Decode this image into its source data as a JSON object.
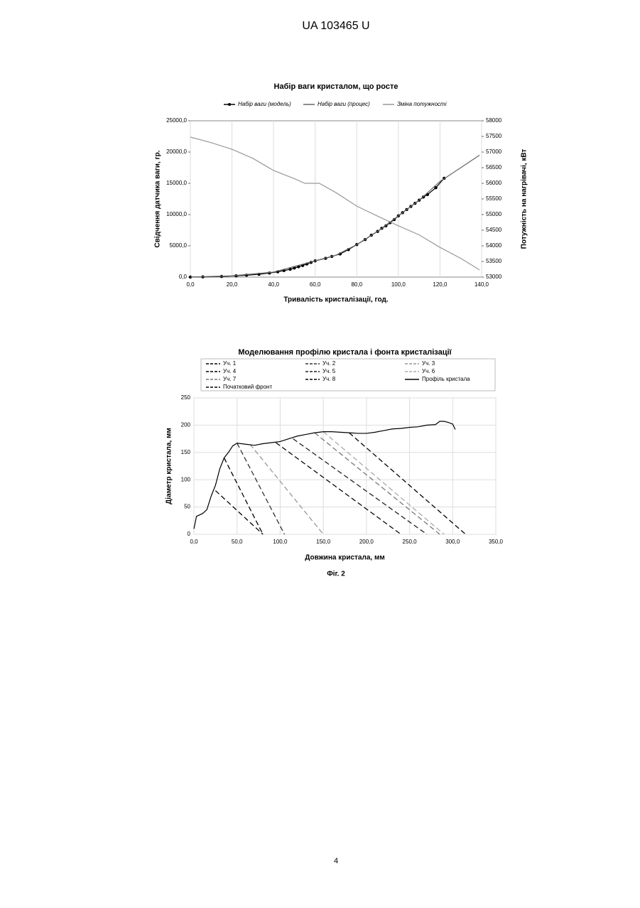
{
  "header": "UA   103465   U",
  "caption": "Фіг. 2",
  "page_number": "4",
  "chart_data": [
    {
      "type": "line",
      "title": "Набір ваги кристалом, що росте",
      "xlabel": "Тривалість кристалізації, год.",
      "ylabel": "Свідчення датчика ваги, гр.",
      "y2label": "Потужність на нагрівачі, кВт",
      "xlim": [
        0,
        140
      ],
      "xticks": [
        {
          "value": 0,
          "label": "0,0"
        },
        {
          "value": 20,
          "label": "20,0"
        },
        {
          "value": 40,
          "label": "40,0"
        },
        {
          "value": 60,
          "label": "60,0"
        },
        {
          "value": 80,
          "label": "80,0"
        },
        {
          "value": 100,
          "label": "100,0"
        },
        {
          "value": 120,
          "label": "120,0"
        },
        {
          "value": 140,
          "label": "140,0"
        }
      ],
      "ylim": [
        0,
        25000
      ],
      "yticks": [
        {
          "value": 0,
          "label": "0,0"
        },
        {
          "value": 5000,
          "label": "5000,0"
        },
        {
          "value": 10000,
          "label": "10000,0"
        },
        {
          "value": 15000,
          "label": "15000,0"
        },
        {
          "value": 20000,
          "label": "20000,0"
        },
        {
          "value": 25000,
          "label": "25000,0"
        }
      ],
      "y2lim": [
        53000,
        58000
      ],
      "y2ticks": [
        53000,
        53500,
        54000,
        54500,
        55000,
        55500,
        56000,
        56500,
        57000,
        57500,
        58000
      ],
      "grid": true,
      "series": [
        {
          "name": "Набір ваги (модель)",
          "color": "#000000",
          "marker": true,
          "dashed": false,
          "x": [
            0,
            6,
            15,
            22,
            27,
            33,
            38,
            42,
            45,
            48,
            50,
            52,
            54,
            56,
            58,
            60,
            65,
            68,
            72,
            76,
            80,
            84,
            87,
            90,
            92,
            94,
            96,
            98,
            100,
            102,
            104,
            106,
            108,
            110,
            112,
            114,
            118,
            122
          ],
          "values": [
            0,
            30,
            100,
            200,
            300,
            450,
            650,
            850,
            1050,
            1250,
            1450,
            1650,
            1850,
            2100,
            2350,
            2600,
            3000,
            3300,
            3700,
            4400,
            5200,
            6000,
            6700,
            7300,
            7800,
            8200,
            8700,
            9200,
            9800,
            10300,
            10800,
            11300,
            11800,
            12300,
            12800,
            13200,
            14300,
            15800
          ]
        },
        {
          "name": "Набір ваги (процес)",
          "color": "#666666",
          "marker": false,
          "dashed": false,
          "x": [
            0,
            20,
            40,
            60,
            70,
            80,
            90,
            100,
            110,
            120,
            130,
            139
          ],
          "values": [
            0,
            200,
            800,
            2600,
            3500,
            5200,
            7300,
            9800,
            12300,
            15300,
            17500,
            19500
          ]
        },
        {
          "name": "Зміна потужності",
          "color": "#999999",
          "marker": false,
          "dashed": false,
          "axis": "y2",
          "x": [
            0,
            10,
            20,
            30,
            40,
            50,
            55,
            62,
            70,
            80,
            90,
            100,
            110,
            120,
            130,
            139
          ],
          "values": [
            57480,
            57300,
            57090,
            56800,
            56410,
            56150,
            56000,
            56000,
            55700,
            55270,
            54950,
            54640,
            54350,
            53950,
            53600,
            53230
          ]
        }
      ]
    },
    {
      "type": "line",
      "title": "Моделювання профілю кристала і фонта кристалізації",
      "xlabel": "Довжина кристала, мм",
      "ylabel": "Діаметр кристала, мм",
      "xlim": [
        0,
        350
      ],
      "xticks": [
        {
          "value": 0,
          "label": "0,0"
        },
        {
          "value": 50,
          "label": "50,0"
        },
        {
          "value": 100,
          "label": "100,0"
        },
        {
          "value": 150,
          "label": "150,0"
        },
        {
          "value": 200,
          "label": "200,0"
        },
        {
          "value": 250,
          "label": "250,0"
        },
        {
          "value": 300,
          "label": "300,0"
        },
        {
          "value": 350,
          "label": "350,0"
        }
      ],
      "ylim": [
        0,
        250
      ],
      "yticks": [
        0,
        50,
        100,
        150,
        200,
        250
      ],
      "grid": true,
      "series": [
        {
          "name": "Уч. 1",
          "color": "#000000",
          "dashed": true,
          "marker": false,
          "x": [
            35,
            80
          ],
          "values": [
            140,
            0
          ]
        },
        {
          "name": "Уч. 2",
          "color": "#333333",
          "dashed": true,
          "marker": false,
          "x": [
            50,
            105
          ],
          "values": [
            167,
            0
          ]
        },
        {
          "name": "Уч. 3",
          "color": "#999999",
          "dashed": true,
          "marker": false,
          "x": [
            65,
            150
          ],
          "values": [
            165,
            0
          ]
        },
        {
          "name": "Уч. 4",
          "color": "#000000",
          "dashed": true,
          "marker": false,
          "x": [
            95,
            240
          ],
          "values": [
            168,
            0
          ]
        },
        {
          "name": "Уч. 5",
          "color": "#222222",
          "dashed": true,
          "marker": false,
          "x": [
            115,
            270
          ],
          "values": [
            175,
            0
          ]
        },
        {
          "name": "Уч. 6",
          "color": "#aaaaaa",
          "dashed": true,
          "marker": false,
          "x": [
            150,
            290
          ],
          "values": [
            188,
            0
          ]
        },
        {
          "name": "Уч. 7",
          "color": "#777777",
          "dashed": true,
          "marker": false,
          "x": [
            140,
            285
          ],
          "values": [
            186,
            0
          ]
        },
        {
          "name": "Уч. 8",
          "color": "#000000",
          "dashed": true,
          "marker": false,
          "x": [
            180,
            315
          ],
          "values": [
            186,
            0
          ]
        },
        {
          "name": "Профіль кристала",
          "color": "#000000",
          "dashed": false,
          "marker": false,
          "x": [
            0,
            3,
            10,
            15,
            20,
            25,
            30,
            35,
            40,
            45,
            50,
            60,
            70,
            80,
            90,
            100,
            110,
            120,
            130,
            140,
            150,
            160,
            170,
            180,
            190,
            200,
            210,
            220,
            230,
            240,
            250,
            260,
            270,
            280,
            285,
            290,
            295,
            300,
            303
          ],
          "values": [
            10,
            33,
            38,
            45,
            70,
            90,
            120,
            140,
            150,
            162,
            167,
            165,
            163,
            166,
            168,
            170,
            175,
            180,
            183,
            186,
            188,
            188,
            187,
            186,
            185,
            185,
            187,
            190,
            193,
            194,
            196,
            197,
            200,
            201,
            207,
            207,
            205,
            202,
            192
          ]
        },
        {
          "name": "Початковий фронт",
          "color": "#000000",
          "dashed": true,
          "marker": false,
          "x": [
            25,
            80
          ],
          "values": [
            80,
            0
          ]
        }
      ]
    }
  ]
}
